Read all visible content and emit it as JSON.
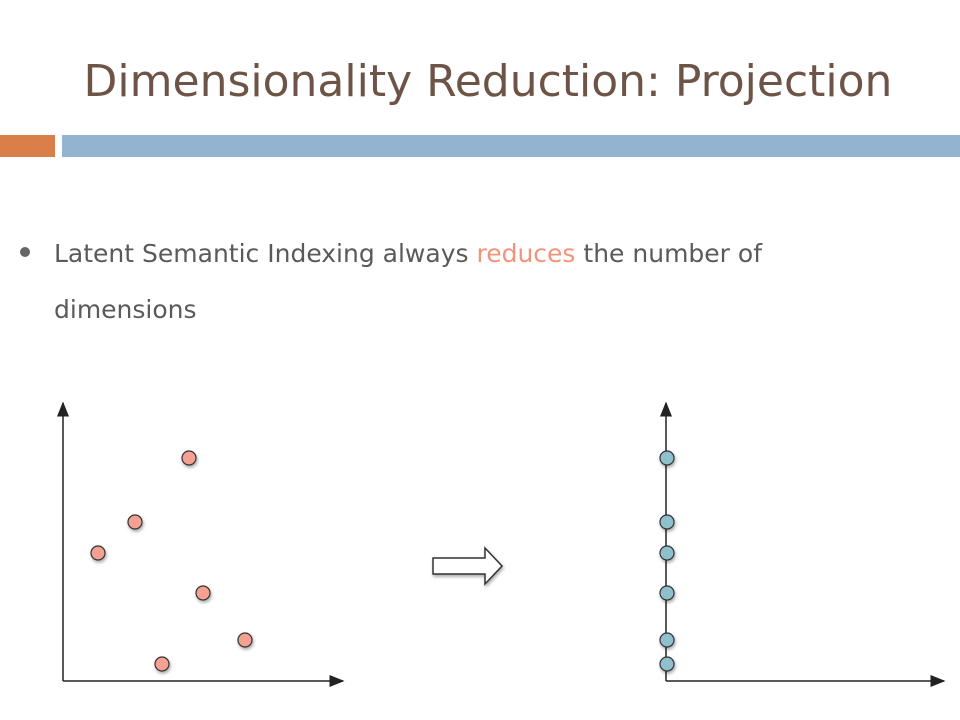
{
  "title": "Dimensionality Reduction: Projection",
  "bullet": {
    "parts": [
      "Latent Semantic Indexing always",
      "reduces",
      "the number of",
      "dimensions"
    ]
  }
}
